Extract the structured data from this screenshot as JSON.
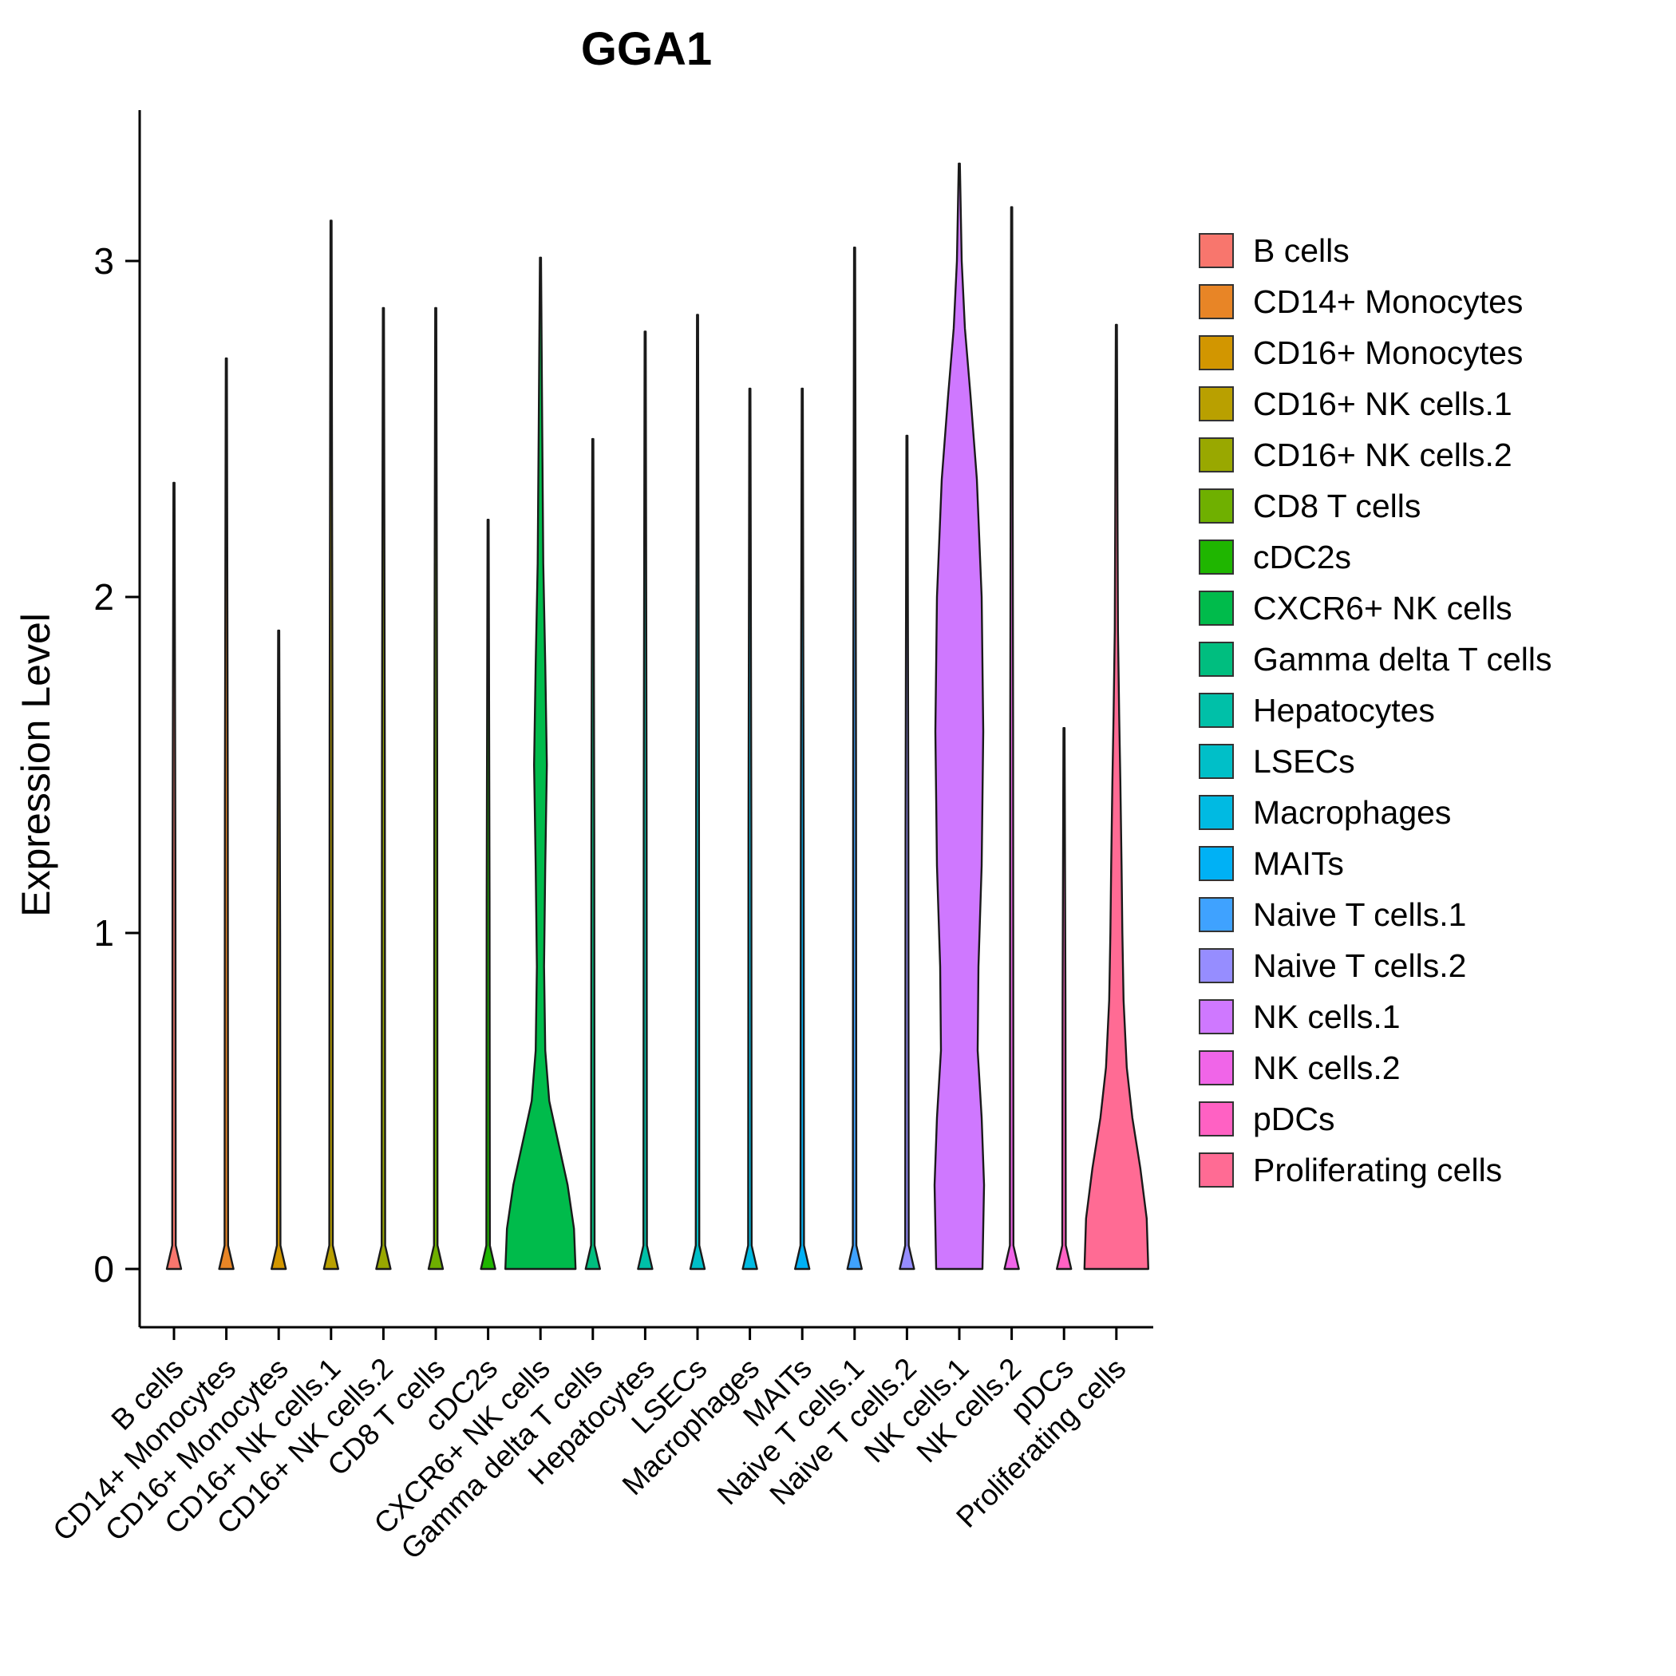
{
  "title": "GGA1",
  "y_axis": {
    "label": "Expression Level",
    "ticks": [
      0,
      1,
      2,
      3
    ]
  },
  "legend": {
    "items": [
      {
        "label": "B cells",
        "color": "#F8766D"
      },
      {
        "label": "CD14+ Monocytes",
        "color": "#E88526"
      },
      {
        "label": "CD16+ Monocytes",
        "color": "#D29600"
      },
      {
        "label": "CD16+ NK cells.1",
        "color": "#B9A000"
      },
      {
        "label": "CD16+ NK cells.2",
        "color": "#99A800"
      },
      {
        "label": "CD8 T cells",
        "color": "#6FB000"
      },
      {
        "label": "cDC2s",
        "color": "#1FB600"
      },
      {
        "label": "CXCR6+ NK cells",
        "color": "#00BB4B"
      },
      {
        "label": "Gamma delta T cells",
        "color": "#00BE7F"
      },
      {
        "label": "Hepatocytes",
        "color": "#00C0A8"
      },
      {
        "label": "LSECs",
        "color": "#00BFC8"
      },
      {
        "label": "Macrophages",
        "color": "#00BAE2"
      },
      {
        "label": "MAITs",
        "color": "#00B1F5"
      },
      {
        "label": "Naive T cells.1",
        "color": "#3FA2FF"
      },
      {
        "label": "Naive T cells.2",
        "color": "#968DFF"
      },
      {
        "label": "NK cells.1",
        "color": "#CF78FF"
      },
      {
        "label": "NK cells.2",
        "color": "#F065E8"
      },
      {
        "label": "pDCs",
        "color": "#FF61C3"
      },
      {
        "label": "Proliferating cells",
        "color": "#FF6B94"
      }
    ]
  },
  "chart_data": {
    "type": "violin",
    "title": "GGA1",
    "xlabel": "",
    "ylabel": "Expression Level",
    "ylim": [
      0,
      3.4
    ],
    "yticks": [
      0,
      1,
      2,
      3
    ],
    "legend_position": "right",
    "grid": false,
    "categories": [
      "B cells",
      "CD14+ Monocytes",
      "CD16+ Monocytes",
      "CD16+ NK cells.1",
      "CD16+ NK cells.2",
      "CD8 T cells",
      "cDC2s",
      "CXCR6+ NK cells",
      "Gamma delta T cells",
      "Hepatocytes",
      "LSECs",
      "Macrophages",
      "MAITs",
      "Naive T cells.1",
      "Naive T cells.2",
      "NK cells.1",
      "NK cells.2",
      "pDCs",
      "Proliferating cells"
    ],
    "colors": [
      "#F8766D",
      "#E88526",
      "#D29600",
      "#B9A000",
      "#99A800",
      "#6FB000",
      "#1FB600",
      "#00BB4B",
      "#00BE7F",
      "#00C0A8",
      "#00BFC8",
      "#00BAE2",
      "#00B1F5",
      "#3FA2FF",
      "#968DFF",
      "#CF78FF",
      "#F065E8",
      "#FF61C3",
      "#FF6B94"
    ],
    "max_expression": [
      2.34,
      2.71,
      1.9,
      3.12,
      2.86,
      2.86,
      2.23,
      3.01,
      2.47,
      2.79,
      2.84,
      2.62,
      2.62,
      3.04,
      2.48,
      3.29,
      3.16,
      1.61,
      2.81
    ],
    "violins": [
      {
        "label": "B cells",
        "color": "#F8766D",
        "max": 2.34,
        "profile": [
          [
            0,
            9
          ],
          [
            0.07,
            2.2
          ],
          [
            1.2,
            1.8
          ],
          [
            2.34,
            0.7
          ]
        ]
      },
      {
        "label": "CD14+ Monocytes",
        "color": "#E88526",
        "max": 2.71,
        "profile": [
          [
            0,
            9
          ],
          [
            0.07,
            2.2
          ],
          [
            1.4,
            1.8
          ],
          [
            2.71,
            0.7
          ]
        ]
      },
      {
        "label": "CD16+ Monocytes",
        "color": "#D29600",
        "max": 1.9,
        "profile": [
          [
            0,
            9
          ],
          [
            0.07,
            2.2
          ],
          [
            1.0,
            1.8
          ],
          [
            1.9,
            0.7
          ]
        ]
      },
      {
        "label": "CD16+ NK cells.1",
        "color": "#B9A000",
        "max": 3.12,
        "profile": [
          [
            0,
            9
          ],
          [
            0.07,
            2.2
          ],
          [
            1.6,
            1.8
          ],
          [
            3.12,
            0.7
          ]
        ]
      },
      {
        "label": "CD16+ NK cells.2",
        "color": "#99A800",
        "max": 2.86,
        "profile": [
          [
            0,
            9
          ],
          [
            0.07,
            2.2
          ],
          [
            1.5,
            1.8
          ],
          [
            2.86,
            0.7
          ]
        ]
      },
      {
        "label": "CD8 T cells",
        "color": "#6FB000",
        "max": 2.86,
        "profile": [
          [
            0,
            9
          ],
          [
            0.07,
            2.2
          ],
          [
            1.5,
            1.8
          ],
          [
            2.86,
            0.7
          ]
        ]
      },
      {
        "label": "cDC2s",
        "color": "#1FB600",
        "max": 2.23,
        "profile": [
          [
            0,
            9
          ],
          [
            0.07,
            2.2
          ],
          [
            1.1,
            1.8
          ],
          [
            2.23,
            0.7
          ]
        ]
      },
      {
        "label": "CXCR6+ NK cells",
        "color": "#00BB4B",
        "max": 3.01,
        "profile": [
          [
            0,
            44
          ],
          [
            0.12,
            42
          ],
          [
            0.25,
            34
          ],
          [
            0.38,
            22
          ],
          [
            0.5,
            11
          ],
          [
            0.65,
            6
          ],
          [
            0.9,
            4.5
          ],
          [
            1.2,
            6
          ],
          [
            1.5,
            8
          ],
          [
            1.8,
            6
          ],
          [
            2.1,
            3.5
          ],
          [
            2.5,
            2.2
          ],
          [
            3.01,
            0.7
          ]
        ]
      },
      {
        "label": "Gamma delta T cells",
        "color": "#00BE7F",
        "max": 2.47,
        "profile": [
          [
            0,
            9
          ],
          [
            0.07,
            2.2
          ],
          [
            1.3,
            1.8
          ],
          [
            2.47,
            0.7
          ]
        ]
      },
      {
        "label": "Hepatocytes",
        "color": "#00C0A8",
        "max": 2.79,
        "profile": [
          [
            0,
            9
          ],
          [
            0.07,
            2.2
          ],
          [
            1.4,
            1.8
          ],
          [
            2.79,
            0.7
          ]
        ]
      },
      {
        "label": "LSECs",
        "color": "#00BFC8",
        "max": 2.84,
        "profile": [
          [
            0,
            9
          ],
          [
            0.07,
            2.2
          ],
          [
            1.4,
            1.8
          ],
          [
            2.84,
            0.7
          ]
        ]
      },
      {
        "label": "Macrophages",
        "color": "#00BAE2",
        "max": 2.62,
        "profile": [
          [
            0,
            9
          ],
          [
            0.07,
            2.2
          ],
          [
            1.3,
            1.8
          ],
          [
            2.62,
            0.7
          ]
        ]
      },
      {
        "label": "MAITs",
        "color": "#00B1F5",
        "max": 2.62,
        "profile": [
          [
            0,
            9
          ],
          [
            0.07,
            2.2
          ],
          [
            1.3,
            1.8
          ],
          [
            2.62,
            0.7
          ]
        ]
      },
      {
        "label": "Naive T cells.1",
        "color": "#3FA2FF",
        "max": 3.04,
        "profile": [
          [
            0,
            9
          ],
          [
            0.07,
            2.2
          ],
          [
            1.5,
            1.8
          ],
          [
            3.04,
            0.7
          ]
        ]
      },
      {
        "label": "Naive T cells.2",
        "color": "#968DFF",
        "max": 2.48,
        "profile": [
          [
            0,
            9
          ],
          [
            0.07,
            2.2
          ],
          [
            1.3,
            1.8
          ],
          [
            2.48,
            0.7
          ]
        ]
      },
      {
        "label": "NK cells.1",
        "color": "#CF78FF",
        "max": 3.29,
        "profile": [
          [
            0,
            29
          ],
          [
            0.25,
            31
          ],
          [
            0.45,
            28
          ],
          [
            0.65,
            23
          ],
          [
            0.9,
            24
          ],
          [
            1.2,
            28
          ],
          [
            1.6,
            30
          ],
          [
            2.0,
            28
          ],
          [
            2.35,
            22
          ],
          [
            2.6,
            14
          ],
          [
            2.8,
            7
          ],
          [
            3.0,
            3
          ],
          [
            3.29,
            0.7
          ]
        ]
      },
      {
        "label": "NK cells.2",
        "color": "#F065E8",
        "max": 3.16,
        "profile": [
          [
            0,
            9
          ],
          [
            0.07,
            2.2
          ],
          [
            1.6,
            1.8
          ],
          [
            3.16,
            0.7
          ]
        ]
      },
      {
        "label": "pDCs",
        "color": "#FF61C3",
        "max": 1.61,
        "profile": [
          [
            0,
            9
          ],
          [
            0.07,
            2.2
          ],
          [
            0.8,
            1.8
          ],
          [
            1.61,
            0.7
          ]
        ]
      },
      {
        "label": "Proliferating cells",
        "color": "#FF6B94",
        "max": 2.81,
        "profile": [
          [
            0,
            40
          ],
          [
            0.15,
            38
          ],
          [
            0.3,
            30
          ],
          [
            0.45,
            20
          ],
          [
            0.6,
            13
          ],
          [
            0.8,
            9
          ],
          [
            1.0,
            7.5
          ],
          [
            1.2,
            6.5
          ],
          [
            1.45,
            5
          ],
          [
            1.65,
            3.5
          ],
          [
            1.9,
            2
          ],
          [
            2.2,
            1.5
          ],
          [
            2.81,
            0.7
          ]
        ]
      }
    ]
  }
}
